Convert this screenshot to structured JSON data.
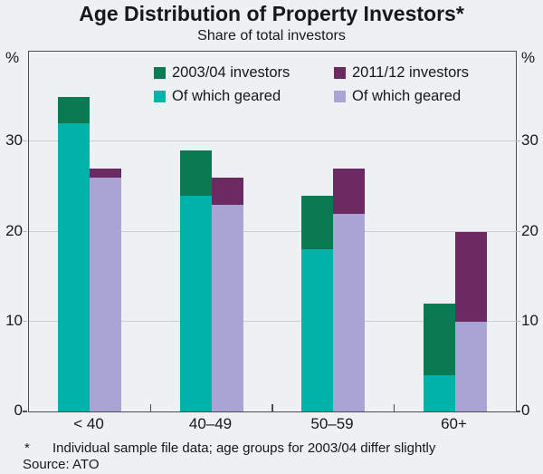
{
  "title": "Age Distribution of Property Investors*",
  "subtitle": "Share of total investors",
  "y_axis": {
    "unit": "%",
    "ticks": [
      0,
      10,
      20,
      30
    ],
    "max": 40
  },
  "legend": {
    "columns": [
      [
        {
          "label": "2003/04 investors",
          "color": "#097a52",
          "hatch": true
        },
        {
          "label": "Of which geared",
          "color": "#00b3a9",
          "hatch": false
        }
      ],
      [
        {
          "label": "2011/12 investors",
          "color": "#6b2a61",
          "hatch": false
        },
        {
          "label": "Of which geared",
          "color": "#a8a4d4",
          "hatch": false
        }
      ]
    ]
  },
  "chart_data": {
    "type": "bar",
    "title": "Age Distribution of Property Investors*",
    "subtitle": "Share of total investors",
    "categories": [
      "< 40",
      "40–49",
      "50–59",
      "60+"
    ],
    "xlabel": "",
    "ylabel": "%",
    "ylim": [
      0,
      40
    ],
    "yticks": [
      0,
      10,
      20,
      30
    ],
    "grid": true,
    "legend_position": "top-center-inside",
    "bar_style": "two bars per category; each bar stacked: geared share (light) at bottom, remainder of total (dark) on top",
    "series": [
      {
        "name": "2003/04 investors (total)",
        "pair": "2003/04",
        "role": "total",
        "values": [
          35,
          29,
          24,
          12
        ],
        "color": "#097a52",
        "hatch": true
      },
      {
        "name": "2003/04 of which geared",
        "pair": "2003/04",
        "role": "geared",
        "values": [
          32,
          24,
          18,
          4
        ],
        "color": "#00b3a9",
        "hatch": false
      },
      {
        "name": "2011/12 investors (total)",
        "pair": "2011/12",
        "role": "total",
        "values": [
          27,
          26,
          27,
          20
        ],
        "color": "#6b2a61",
        "hatch": false
      },
      {
        "name": "2011/12 of which geared",
        "pair": "2011/12",
        "role": "geared",
        "values": [
          26,
          23,
          22,
          10
        ],
        "color": "#a8a4d4",
        "hatch": false
      }
    ]
  },
  "footnote": {
    "marker": "*",
    "text": "Individual sample file data; age groups for 2003/04 differ slightly"
  },
  "source": "Source: ATO",
  "colors": {
    "background": "#edf1f4",
    "axis": "#4c4d4f",
    "gridline": "#cbd0d4",
    "text": "#16181b",
    "dark_teal_2003": "#097a52",
    "light_teal_geared_2003": "#00b3a9",
    "dark_purple_2011": "#6b2a61",
    "light_purple_geared_2011": "#a8a4d4"
  }
}
